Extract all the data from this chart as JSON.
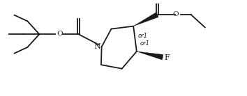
{
  "bg_color": "#ffffff",
  "line_color": "#1a1a1a",
  "line_width": 1.3,
  "font_size": 7.5,
  "figsize": [
    3.54,
    1.38
  ],
  "dpi": 100,
  "xlim": [
    0,
    10.5
  ],
  "ylim": [
    0,
    3.9
  ]
}
